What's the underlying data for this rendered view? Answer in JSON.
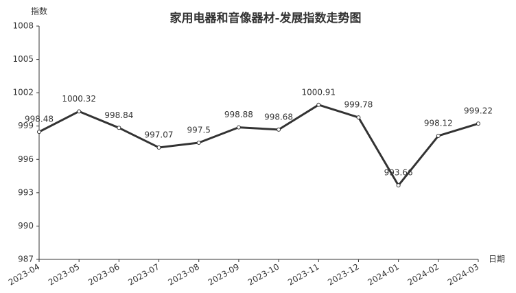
{
  "chart_data": {
    "type": "line",
    "title": "家用电器和音像器材-发展指数走势图",
    "y_label": "指数",
    "x_label": "日期",
    "categories": [
      "2023-04",
      "2023-05",
      "2023-06",
      "2023-07",
      "2023-08",
      "2023-09",
      "2023-10",
      "2023-11",
      "2023-12",
      "2024-01",
      "2024-02",
      "2024-03"
    ],
    "values": [
      998.48,
      1000.32,
      998.84,
      997.07,
      997.5,
      998.88,
      998.68,
      1000.91,
      999.78,
      993.66,
      998.12,
      999.22
    ],
    "color": "#333333",
    "ylim": [
      987,
      1008
    ],
    "yticks": [
      987,
      990,
      993,
      996,
      999,
      1002,
      1005,
      1008
    ],
    "grid": false
  }
}
